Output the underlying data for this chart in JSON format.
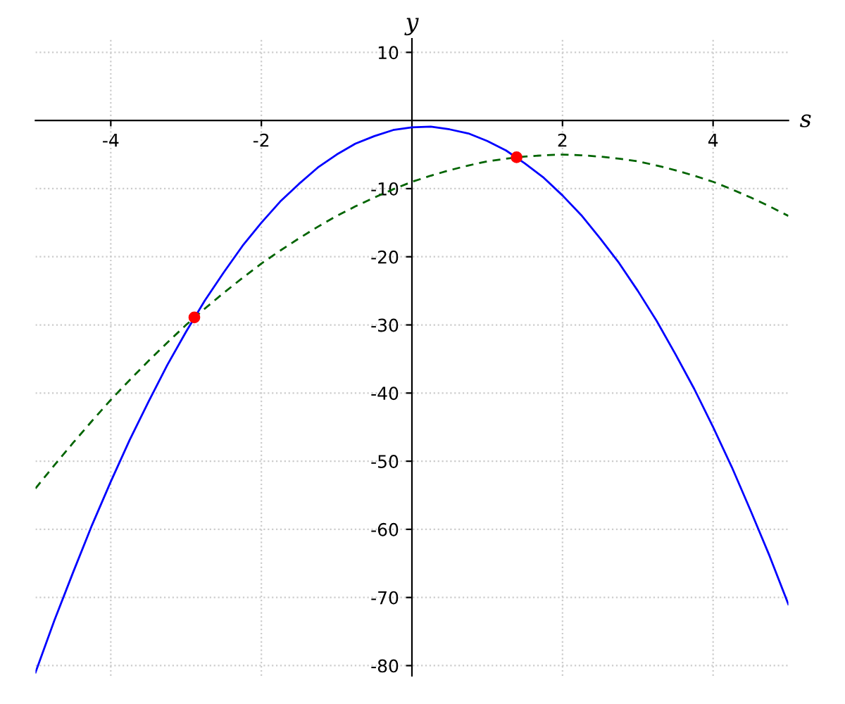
{
  "chart_data": {
    "type": "line",
    "xlabel": "s",
    "ylabel": "y",
    "xlim": [
      -5,
      5
    ],
    "ylim": [
      -81.5,
      12
    ],
    "xticks": [
      -4,
      -2,
      2,
      4
    ],
    "yticks": [
      10,
      -10,
      -20,
      -30,
      -40,
      -50,
      -60,
      -70,
      -80
    ],
    "grid": true,
    "x": [
      -5,
      -4.75,
      -4.5,
      -4.25,
      -4,
      -3.75,
      -3.5,
      -3.25,
      -3,
      -2.75,
      -2.5,
      -2.25,
      -2,
      -1.75,
      -1.5,
      -1.25,
      -1,
      -0.75,
      -0.5,
      -0.25,
      0,
      0.25,
      0.5,
      0.75,
      1,
      1.25,
      1.5,
      1.75,
      2,
      2.25,
      2.5,
      2.75,
      3,
      3.25,
      3.5,
      3.75,
      4,
      4.25,
      4.5,
      4.75,
      5
    ],
    "series": [
      {
        "color": "#0000ff",
        "line_style": "solid",
        "values": [
          -81,
          -73.4,
          -66.3,
          -59.4,
          -53,
          -46.9,
          -41.3,
          -35.9,
          -31,
          -26.4,
          -22.3,
          -18.4,
          -15,
          -11.9,
          -9.3,
          -6.9,
          -5,
          -3.4,
          -2.3,
          -1.4,
          -1,
          -0.9,
          -1.3,
          -1.9,
          -3,
          -4.4,
          -6.3,
          -8.4,
          -11,
          -13.9,
          -17.3,
          -20.9,
          -25,
          -29.4,
          -34.3,
          -39.4,
          -45,
          -50.9,
          -57.3,
          -63.9,
          -71
        ]
      },
      {
        "color": "#006400",
        "line_style": "dashed",
        "values": [
          -54,
          -50.6,
          -47.3,
          -44.1,
          -41,
          -38.1,
          -35.3,
          -32.6,
          -30,
          -27.6,
          -25.3,
          -23.1,
          -21,
          -19.1,
          -17.3,
          -15.6,
          -14,
          -12.6,
          -11.3,
          -10.1,
          -9,
          -8.1,
          -7.3,
          -6.6,
          -6,
          -5.6,
          -5.3,
          -5.1,
          -5,
          -5.1,
          -5.3,
          -5.6,
          -6,
          -6.6,
          -7.3,
          -8.1,
          -9,
          -10.1,
          -11.3,
          -12.6,
          -14
        ]
      },
      {
        "type": "scatter",
        "color": "#ff0000",
        "marker": "circle",
        "x": [
          -2.89,
          1.39
        ],
        "values": [
          -28.9,
          -5.4
        ]
      }
    ]
  }
}
